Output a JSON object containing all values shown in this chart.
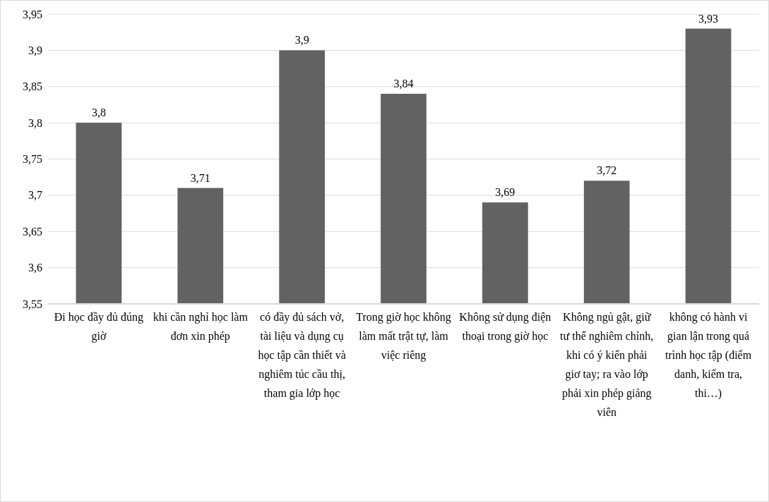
{
  "chart_data": {
    "type": "bar",
    "categories": [
      "Đi học đầy đủ đúng giờ",
      "khi cần nghỉ học làm đơn xin phép",
      "có đầy đủ sách vở, tài liệu và dụng cụ học tập cần thiết và nghiêm túc cầu thị, tham gia lớp học",
      "Trong giờ học không làm mất trật tự, làm việc riêng",
      "Không sử dụng điện thoại trong giờ học",
      "Không ngủ gật, giữ tư thế nghiêm chỉnh, khi có ý kiến phải giơ tay; ra vào lớp phải xin phép giảng viên",
      "không có hành vi gian lận trong quá trình học tập (điểm danh, kiểm tra, thi…)"
    ],
    "values": [
      3.8,
      3.71,
      3.9,
      3.84,
      3.69,
      3.72,
      3.93
    ],
    "value_labels": [
      "3,8",
      "3,71",
      "3,9",
      "3,84",
      "3,69",
      "3,72",
      "3,93"
    ],
    "color": "#626262",
    "ylim": [
      3.55,
      3.95
    ],
    "yticks": [
      {
        "value": 3.55,
        "label": "3,55"
      },
      {
        "value": 3.6,
        "label": "3,6"
      },
      {
        "value": 3.65,
        "label": "3,65"
      },
      {
        "value": 3.7,
        "label": "3,7"
      },
      {
        "value": 3.75,
        "label": "3,75"
      },
      {
        "value": 3.8,
        "label": "3,8"
      },
      {
        "value": 3.85,
        "label": "3,85"
      },
      {
        "value": 3.9,
        "label": "3,9"
      },
      {
        "value": 3.95,
        "label": "3,95"
      }
    ],
    "grid": "y"
  }
}
